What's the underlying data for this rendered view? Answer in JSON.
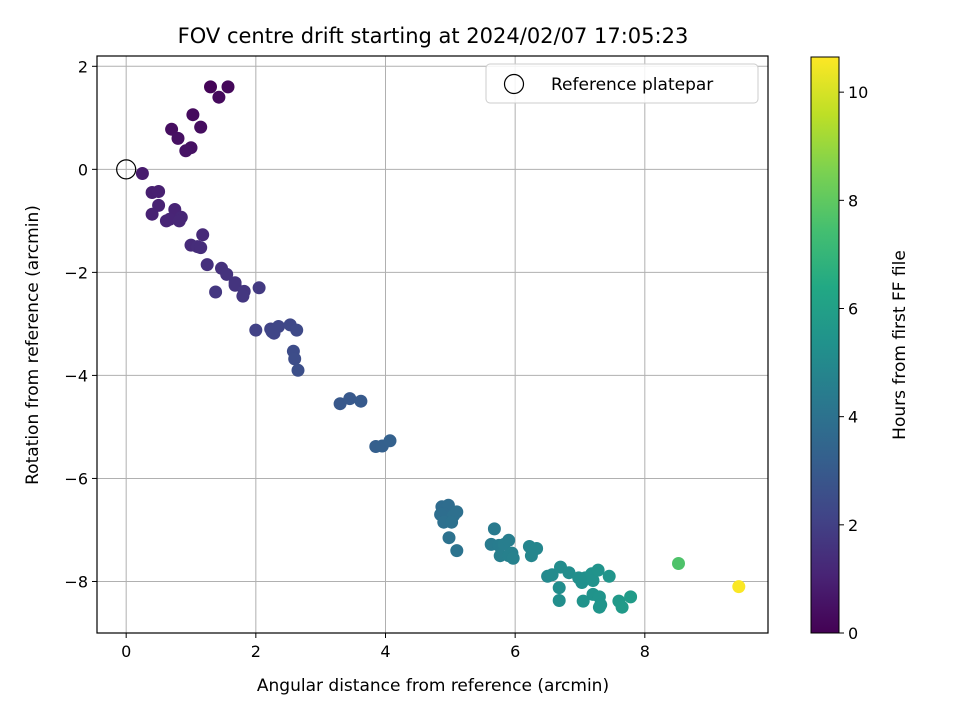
{
  "chart_data": {
    "type": "scatter",
    "title": "FOV centre drift starting at 2024/02/07 17:05:23",
    "xlabel": "Angular distance from reference (arcmin)",
    "ylabel": "Rotation from reference (arcmin)",
    "xlim": [
      -0.45,
      9.9
    ],
    "ylim": [
      -9.0,
      2.2
    ],
    "xticks": [
      0,
      2,
      4,
      6,
      8
    ],
    "xtick_labels": [
      "0",
      "2",
      "4",
      "6",
      "8"
    ],
    "yticks": [
      2,
      0,
      -2,
      -4,
      -6,
      -8
    ],
    "ytick_labels": [
      "2",
      "0",
      "−2",
      "−4",
      "−6",
      "−8"
    ],
    "grid": true,
    "legend": {
      "position": "top-right",
      "entries": [
        "Reference platepar"
      ]
    },
    "colorbar": {
      "label": "Hours from first FF file",
      "range": [
        0,
        10.65
      ],
      "ticks": [
        0,
        2,
        4,
        6,
        8,
        10
      ],
      "tick_labels": [
        "0",
        "2",
        "4",
        "6",
        "8",
        "10"
      ],
      "colormap": "viridis"
    },
    "reference_point": {
      "x": 0,
      "y": 0
    },
    "series": [
      {
        "points": [
          [
            1.3,
            1.6,
            0.1
          ],
          [
            1.57,
            1.6,
            0.2
          ],
          [
            1.43,
            1.4,
            0.25
          ],
          [
            1.03,
            1.06,
            0.3
          ],
          [
            1.15,
            0.82,
            0.35
          ],
          [
            0.7,
            0.78,
            0.4
          ],
          [
            0.8,
            0.6,
            0.45
          ],
          [
            1.0,
            0.42,
            0.5
          ],
          [
            0.92,
            0.36,
            0.55
          ],
          [
            0.25,
            -0.08,
            0.8
          ],
          [
            0.4,
            -0.45,
            0.9
          ],
          [
            0.5,
            -0.43,
            0.95
          ],
          [
            0.5,
            -0.7,
            1.0
          ],
          [
            0.4,
            -0.87,
            1.0
          ],
          [
            0.75,
            -0.78,
            1.05
          ],
          [
            0.62,
            -1.0,
            1.1
          ],
          [
            0.67,
            -0.97,
            1.1
          ],
          [
            0.85,
            -0.93,
            1.15
          ],
          [
            0.82,
            -1.0,
            1.15
          ],
          [
            1.18,
            -1.27,
            1.25
          ],
          [
            1.0,
            -1.47,
            1.3
          ],
          [
            1.1,
            -1.5,
            1.35
          ],
          [
            1.15,
            -1.52,
            1.35
          ],
          [
            1.25,
            -1.85,
            1.45
          ],
          [
            1.47,
            -1.92,
            1.5
          ],
          [
            1.55,
            -2.04,
            1.55
          ],
          [
            1.68,
            -2.2,
            1.6
          ],
          [
            1.68,
            -2.25,
            1.6
          ],
          [
            1.82,
            -2.37,
            1.65
          ],
          [
            1.8,
            -2.46,
            1.7
          ],
          [
            1.38,
            -2.38,
            1.7
          ],
          [
            2.05,
            -2.3,
            1.8
          ],
          [
            2.0,
            -3.12,
            2.05
          ],
          [
            2.23,
            -3.1,
            2.1
          ],
          [
            2.28,
            -3.18,
            2.15
          ],
          [
            2.35,
            -3.05,
            2.2
          ],
          [
            2.25,
            -3.15,
            2.2
          ],
          [
            2.53,
            -3.02,
            2.3
          ],
          [
            2.63,
            -3.12,
            2.35
          ],
          [
            2.58,
            -3.53,
            2.45
          ],
          [
            2.6,
            -3.68,
            2.5
          ],
          [
            2.65,
            -3.9,
            2.55
          ],
          [
            3.3,
            -4.55,
            2.9
          ],
          [
            3.45,
            -4.45,
            2.95
          ],
          [
            3.62,
            -4.5,
            3.0
          ],
          [
            3.85,
            -5.38,
            3.2
          ],
          [
            3.95,
            -5.37,
            3.25
          ],
          [
            4.07,
            -5.27,
            3.3
          ],
          [
            4.87,
            -6.55,
            3.75
          ],
          [
            4.97,
            -6.52,
            3.8
          ],
          [
            4.9,
            -6.68,
            3.8
          ],
          [
            4.85,
            -6.7,
            3.85
          ],
          [
            4.95,
            -6.78,
            3.85
          ],
          [
            5.05,
            -6.72,
            3.9
          ],
          [
            5.1,
            -6.65,
            3.9
          ],
          [
            4.9,
            -6.85,
            3.9
          ],
          [
            5.02,
            -6.85,
            3.95
          ],
          [
            4.98,
            -7.15,
            4.0
          ],
          [
            5.1,
            -7.4,
            4.05
          ],
          [
            5.68,
            -6.98,
            4.35
          ],
          [
            5.63,
            -7.28,
            4.4
          ],
          [
            5.75,
            -7.3,
            4.45
          ],
          [
            5.83,
            -7.28,
            4.5
          ],
          [
            5.9,
            -7.2,
            4.5
          ],
          [
            5.77,
            -7.5,
            4.55
          ],
          [
            5.95,
            -7.45,
            4.6
          ],
          [
            5.9,
            -7.5,
            4.6
          ],
          [
            5.97,
            -7.55,
            4.65
          ],
          [
            6.22,
            -7.32,
            4.8
          ],
          [
            6.33,
            -7.36,
            4.85
          ],
          [
            6.25,
            -7.5,
            4.85
          ],
          [
            6.5,
            -7.9,
            5.0
          ],
          [
            6.57,
            -7.87,
            5.05
          ],
          [
            6.7,
            -7.72,
            5.1
          ],
          [
            6.83,
            -7.83,
            5.15
          ],
          [
            6.68,
            -8.12,
            5.15
          ],
          [
            6.68,
            -8.37,
            5.2
          ],
          [
            6.98,
            -7.93,
            5.25
          ],
          [
            7.03,
            -8.02,
            5.3
          ],
          [
            7.08,
            -7.93,
            5.3
          ],
          [
            7.18,
            -7.85,
            5.35
          ],
          [
            7.2,
            -7.98,
            5.35
          ],
          [
            7.28,
            -7.78,
            5.4
          ],
          [
            7.2,
            -8.25,
            5.4
          ],
          [
            7.05,
            -8.38,
            5.4
          ],
          [
            7.3,
            -8.3,
            5.45
          ],
          [
            7.32,
            -8.45,
            5.45
          ],
          [
            7.3,
            -8.5,
            5.5
          ],
          [
            7.45,
            -7.9,
            5.5
          ],
          [
            7.6,
            -8.38,
            5.7
          ],
          [
            7.65,
            -8.5,
            5.75
          ],
          [
            7.78,
            -8.3,
            5.8
          ],
          [
            8.52,
            -7.65,
            7.65
          ],
          [
            9.45,
            -8.1,
            10.6
          ]
        ]
      }
    ]
  }
}
